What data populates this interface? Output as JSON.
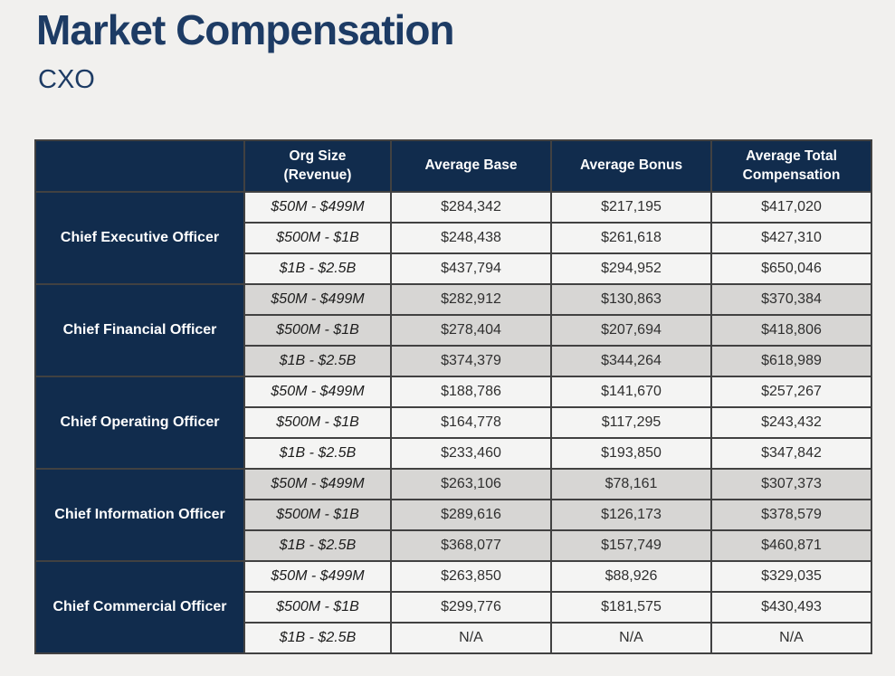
{
  "page": {
    "title": "Market Compensation",
    "subtitle": "CXO"
  },
  "colors": {
    "navy_header": "#112c4d",
    "title_text": "#1d3b64",
    "light_row_bg": "#f4f4f3",
    "gray_row_bg": "#d7d6d4",
    "border": "#414141",
    "page_bg": "#f1f0ee"
  },
  "table": {
    "headers": {
      "role": "",
      "org_size": "Org Size\n(Revenue)",
      "avg_base": "Average Base",
      "avg_bonus": "Average Bonus",
      "avg_total": "Average Total\nCompensation"
    },
    "groups": [
      {
        "role": "Chief Executive Officer",
        "shade": "light",
        "rows": [
          {
            "org_size": "$50M - $499M",
            "avg_base": "$284,342",
            "avg_bonus": "$217,195",
            "avg_total": "$417,020"
          },
          {
            "org_size": "$500M - $1B",
            "avg_base": "$248,438",
            "avg_bonus": "$261,618",
            "avg_total": "$427,310"
          },
          {
            "org_size": "$1B - $2.5B",
            "avg_base": "$437,794",
            "avg_bonus": "$294,952",
            "avg_total": "$650,046"
          }
        ]
      },
      {
        "role": "Chief Financial Officer",
        "shade": "gray",
        "rows": [
          {
            "org_size": "$50M - $499M",
            "avg_base": "$282,912",
            "avg_bonus": "$130,863",
            "avg_total": "$370,384"
          },
          {
            "org_size": "$500M - $1B",
            "avg_base": "$278,404",
            "avg_bonus": "$207,694",
            "avg_total": "$418,806"
          },
          {
            "org_size": "$1B - $2.5B",
            "avg_base": "$374,379",
            "avg_bonus": "$344,264",
            "avg_total": "$618,989"
          }
        ]
      },
      {
        "role": "Chief Operating Officer",
        "shade": "light",
        "rows": [
          {
            "org_size": "$50M - $499M",
            "avg_base": "$188,786",
            "avg_bonus": "$141,670",
            "avg_total": "$257,267"
          },
          {
            "org_size": "$500M - $1B",
            "avg_base": "$164,778",
            "avg_bonus": "$117,295",
            "avg_total": "$243,432"
          },
          {
            "org_size": "$1B - $2.5B",
            "avg_base": "$233,460",
            "avg_bonus": "$193,850",
            "avg_total": "$347,842"
          }
        ]
      },
      {
        "role": "Chief Information Officer",
        "shade": "gray",
        "rows": [
          {
            "org_size": "$50M - $499M",
            "avg_base": "$263,106",
            "avg_bonus": "$78,161",
            "avg_total": "$307,373"
          },
          {
            "org_size": "$500M - $1B",
            "avg_base": "$289,616",
            "avg_bonus": "$126,173",
            "avg_total": "$378,579"
          },
          {
            "org_size": "$1B - $2.5B",
            "avg_base": "$368,077",
            "avg_bonus": "$157,749",
            "avg_total": "$460,871"
          }
        ]
      },
      {
        "role": "Chief Commercial Officer",
        "shade": "light",
        "rows": [
          {
            "org_size": "$50M - $499M",
            "avg_base": "$263,850",
            "avg_bonus": "$88,926",
            "avg_total": "$329,035"
          },
          {
            "org_size": "$500M - $1B",
            "avg_base": "$299,776",
            "avg_bonus": "$181,575",
            "avg_total": "$430,493"
          },
          {
            "org_size": "$1B - $2.5B",
            "avg_base": "N/A",
            "avg_bonus": "N/A",
            "avg_total": "N/A"
          }
        ]
      }
    ]
  }
}
